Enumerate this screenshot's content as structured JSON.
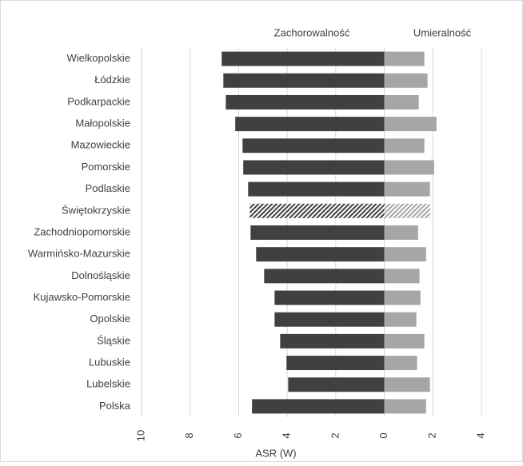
{
  "chart_data": {
    "type": "butterfly",
    "categories": [
      "Wielkopolskie",
      "Łódzkie",
      "Podkarpackie",
      "Małopolskie",
      "Mazowieckie",
      "Pomorskie",
      "Podlaskie",
      "Świętokrzyskie",
      "Zachodniopomorskie",
      "Warmińsko-Mazurskie",
      "Dolnośląskie",
      "Kujawsko-Pomorskie",
      "Opolskie",
      "Śląskie",
      "Lubuskie",
      "Lubelskie",
      "Polska"
    ],
    "series": [
      {
        "name": "Zachorowalność",
        "color": "#404040",
        "values": [
          -6.7,
          -6.63,
          -6.53,
          -6.14,
          -5.84,
          -5.81,
          -5.61,
          -5.54,
          -5.51,
          -5.28,
          -4.95,
          -4.52,
          -4.52,
          -4.29,
          -4.03,
          -3.96,
          -5.45
        ]
      },
      {
        "name": "Umieralność",
        "color": "#a6a6a6",
        "values": [
          1.65,
          1.78,
          1.42,
          2.15,
          1.65,
          2.05,
          1.88,
          1.88,
          1.39,
          1.72,
          1.45,
          1.49,
          1.32,
          1.65,
          1.35,
          1.88,
          1.72
        ]
      }
    ],
    "highlight": 7,
    "xlabel": "ASR (W)",
    "xlim": [
      -10,
      4
    ],
    "xticks": [
      {
        "value": -10,
        "label": "10"
      },
      {
        "value": -8,
        "label": "8"
      },
      {
        "value": -6,
        "label": "6"
      },
      {
        "value": -4,
        "label": "4"
      },
      {
        "value": -2,
        "label": "2"
      },
      0,
      2,
      4
    ],
    "grid": true
  }
}
